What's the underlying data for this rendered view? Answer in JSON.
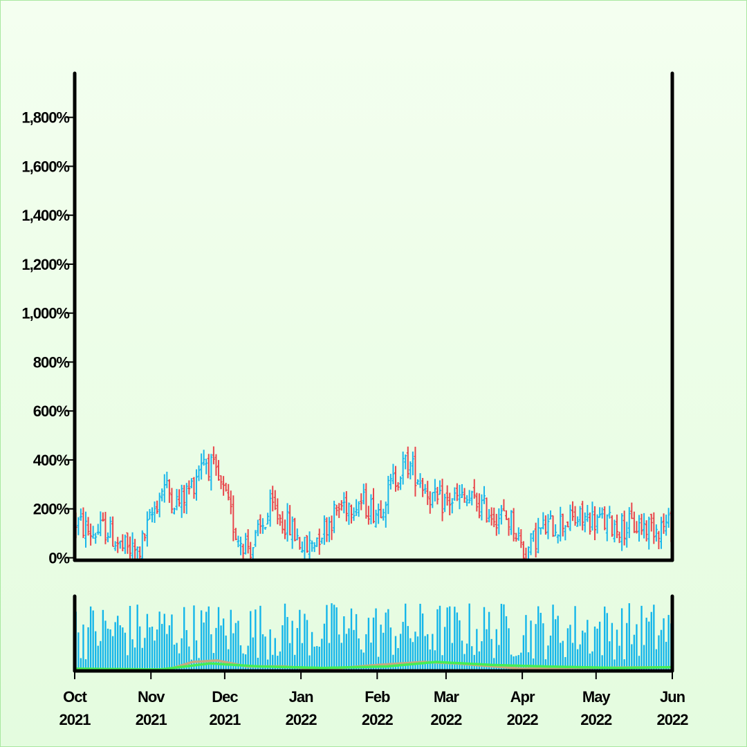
{
  "chart_data": [
    {
      "type": "ohlc",
      "title": "",
      "xlabel": "",
      "ylabel": "",
      "ylim": [
        -10,
        1980
      ],
      "yticks": [
        0,
        200,
        400,
        600,
        800,
        1000,
        1200,
        1400,
        1600,
        1800
      ],
      "ytick_labels": [
        "0%",
        "200%",
        "400%",
        "600%",
        "800%",
        "1,000%",
        "1,200%",
        "1,400%",
        "1,600%",
        "1,800%"
      ],
      "x_start": "2021-10-01",
      "x_end": "2022-06-01",
      "grid": false,
      "colors": {
        "up": "#1ab6ea",
        "down": "#e8454b"
      },
      "close_trend": [
        {
          "x": "2021-10-01",
          "y": 150
        },
        {
          "x": "2021-10-08",
          "y": 100
        },
        {
          "x": "2021-10-14",
          "y": 120
        },
        {
          "x": "2021-10-20",
          "y": 40
        },
        {
          "x": "2021-10-27",
          "y": 20
        },
        {
          "x": "2021-11-01",
          "y": 160
        },
        {
          "x": "2021-11-06",
          "y": 300
        },
        {
          "x": "2021-11-12",
          "y": 220
        },
        {
          "x": "2021-11-18",
          "y": 300
        },
        {
          "x": "2021-11-22",
          "y": 420
        },
        {
          "x": "2021-11-26",
          "y": 360
        },
        {
          "x": "2021-12-01",
          "y": 250
        },
        {
          "x": "2021-12-06",
          "y": 90
        },
        {
          "x": "2021-12-12",
          "y": 40
        },
        {
          "x": "2021-12-20",
          "y": 200
        },
        {
          "x": "2021-12-28",
          "y": 120
        },
        {
          "x": "2022-01-03",
          "y": 30
        },
        {
          "x": "2022-01-10",
          "y": 120
        },
        {
          "x": "2022-01-18",
          "y": 220
        },
        {
          "x": "2022-01-25",
          "y": 230
        },
        {
          "x": "2022-02-01",
          "y": 190
        },
        {
          "x": "2022-02-08",
          "y": 320
        },
        {
          "x": "2022-02-13",
          "y": 390
        },
        {
          "x": "2022-02-18",
          "y": 330
        },
        {
          "x": "2022-02-25",
          "y": 220
        },
        {
          "x": "2022-03-05",
          "y": 240
        },
        {
          "x": "2022-03-12",
          "y": 230
        },
        {
          "x": "2022-03-20",
          "y": 180
        },
        {
          "x": "2022-03-28",
          "y": 150
        },
        {
          "x": "2022-04-02",
          "y": 10
        },
        {
          "x": "2022-04-08",
          "y": 110
        },
        {
          "x": "2022-04-18",
          "y": 150
        },
        {
          "x": "2022-04-28",
          "y": 160
        },
        {
          "x": "2022-05-10",
          "y": 130
        },
        {
          "x": "2022-05-20",
          "y": 130
        },
        {
          "x": "2022-06-01",
          "y": 130
        }
      ]
    },
    {
      "type": "bar",
      "title": "",
      "xlabel": "",
      "ylabel": "",
      "x_start": "2021-10-01",
      "x_end": "2022-06-01",
      "xticks": [
        "2021-10-01",
        "2021-11-01",
        "2021-12-01",
        "2022-01-01",
        "2022-02-01",
        "2022-03-01",
        "2022-04-01",
        "2022-05-01",
        "2022-06-01"
      ],
      "xtick_labels": [
        [
          "Oct",
          "2021"
        ],
        [
          "Nov",
          "2021"
        ],
        [
          "Dec",
          "2021"
        ],
        [
          "Jan",
          "2022"
        ],
        [
          "Feb",
          "2022"
        ],
        [
          "Mar",
          "2022"
        ],
        [
          "Apr",
          "2022"
        ],
        [
          "May",
          "2022"
        ],
        [
          "Jun",
          "2022"
        ]
      ],
      "bar_color": "#12b5ea",
      "value_range": [
        0.15,
        0.93
      ],
      "overlays": [
        {
          "color": "#c8a880",
          "points": [
            {
              "x": "2021-10-01",
              "y": 0.02
            },
            {
              "x": "2021-11-08",
              "y": 0.02
            },
            {
              "x": "2021-11-18",
              "y": 0.12
            },
            {
              "x": "2021-11-28",
              "y": 0.14
            },
            {
              "x": "2021-12-10",
              "y": 0.06
            },
            {
              "x": "2021-12-25",
              "y": 0.06
            },
            {
              "x": "2022-01-10",
              "y": 0.02
            },
            {
              "x": "2022-02-01",
              "y": 0.08
            },
            {
              "x": "2022-02-20",
              "y": 0.12
            },
            {
              "x": "2022-03-05",
              "y": 0.1
            },
            {
              "x": "2022-04-01",
              "y": 0.03
            },
            {
              "x": "2022-04-15",
              "y": 0.04
            },
            {
              "x": "2022-06-01",
              "y": 0.05
            }
          ]
        },
        {
          "color": "#44ee55",
          "points": [
            {
              "x": "2021-10-01",
              "y": 0.03
            },
            {
              "x": "2021-11-05",
              "y": 0.02
            },
            {
              "x": "2021-11-25",
              "y": 0.1
            },
            {
              "x": "2021-12-15",
              "y": 0.06
            },
            {
              "x": "2022-01-10",
              "y": 0.04
            },
            {
              "x": "2022-02-05",
              "y": 0.06
            },
            {
              "x": "2022-02-25",
              "y": 0.12
            },
            {
              "x": "2022-03-20",
              "y": 0.08
            },
            {
              "x": "2022-04-10",
              "y": 0.06
            },
            {
              "x": "2022-05-10",
              "y": 0.04
            },
            {
              "x": "2022-06-01",
              "y": 0.05
            }
          ]
        }
      ]
    }
  ]
}
